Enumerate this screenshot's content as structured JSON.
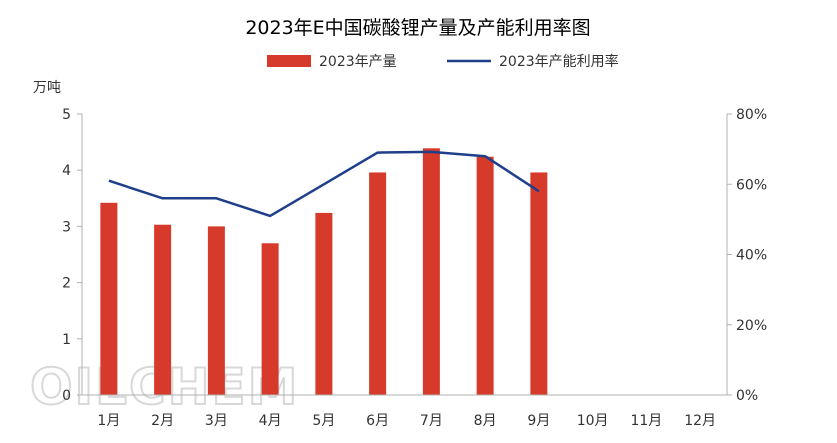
{
  "chart_data": {
    "type": "bar+line",
    "title": "2023年E中国碳酸锂产量及产能利用率图",
    "categories": [
      "1月",
      "2月",
      "3月",
      "4月",
      "5月",
      "6月",
      "7月",
      "8月",
      "9月",
      "10月",
      "11月",
      "12月"
    ],
    "series": [
      {
        "name": "2023年产量",
        "type": "bar",
        "axis": "left",
        "color": "#d63a2b",
        "values": [
          3.42,
          3.03,
          3.0,
          2.7,
          3.24,
          3.96,
          4.39,
          4.24,
          3.96,
          null,
          null,
          null
        ]
      },
      {
        "name": "2023年产能利用率",
        "type": "line",
        "axis": "right",
        "color": "#1f3f8a",
        "values": [
          61,
          56,
          56,
          51,
          60,
          69,
          69.2,
          68,
          58,
          null,
          null,
          null
        ]
      }
    ],
    "yleft": {
      "label": "万吨",
      "min": 0,
      "max": 5,
      "ticks": [
        "0",
        "1",
        "2",
        "3",
        "4",
        "5"
      ]
    },
    "yright": {
      "min": 0,
      "max": 80,
      "ticks": [
        "0%",
        "20%",
        "40%",
        "60%",
        "80%"
      ]
    },
    "legend": "top-center",
    "grid": false,
    "watermark": "OILCHEM"
  }
}
